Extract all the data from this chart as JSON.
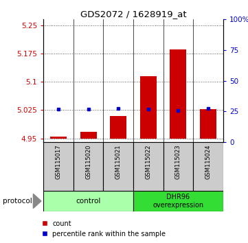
{
  "title": "GDS2072 / 1628919_at",
  "samples": [
    "GSM115017",
    "GSM115020",
    "GSM115021",
    "GSM115022",
    "GSM115023",
    "GSM115024"
  ],
  "count_values": [
    4.955,
    4.968,
    5.01,
    5.115,
    5.185,
    5.028
  ],
  "percentile_values": [
    5.028,
    5.028,
    5.03,
    5.028,
    5.023,
    5.03
  ],
  "ylim_left": [
    4.94,
    5.265
  ],
  "ylim_right": [
    0,
    100
  ],
  "yticks_left": [
    4.95,
    5.025,
    5.1,
    5.175,
    5.25
  ],
  "yticks_right": [
    0,
    25,
    50,
    75,
    100
  ],
  "ytick_labels_left": [
    "4.95",
    "5.025",
    "5.1",
    "5.175",
    "5.25"
  ],
  "ytick_labels_right": [
    "0",
    "25",
    "50",
    "75",
    "100%"
  ],
  "bar_color": "#cc0000",
  "dot_color": "#0000cc",
  "control_label": "control",
  "overexpression_label": "DHR96\noverexpression",
  "control_bg": "#aaffaa",
  "overexpression_bg": "#33dd33",
  "sample_bg": "#cccccc",
  "protocol_label": "protocol",
  "legend_count": "count",
  "legend_percentile": "percentile rank within the sample",
  "grid_color": "#555555",
  "bar_bottom": 4.95,
  "bar_width": 0.55
}
